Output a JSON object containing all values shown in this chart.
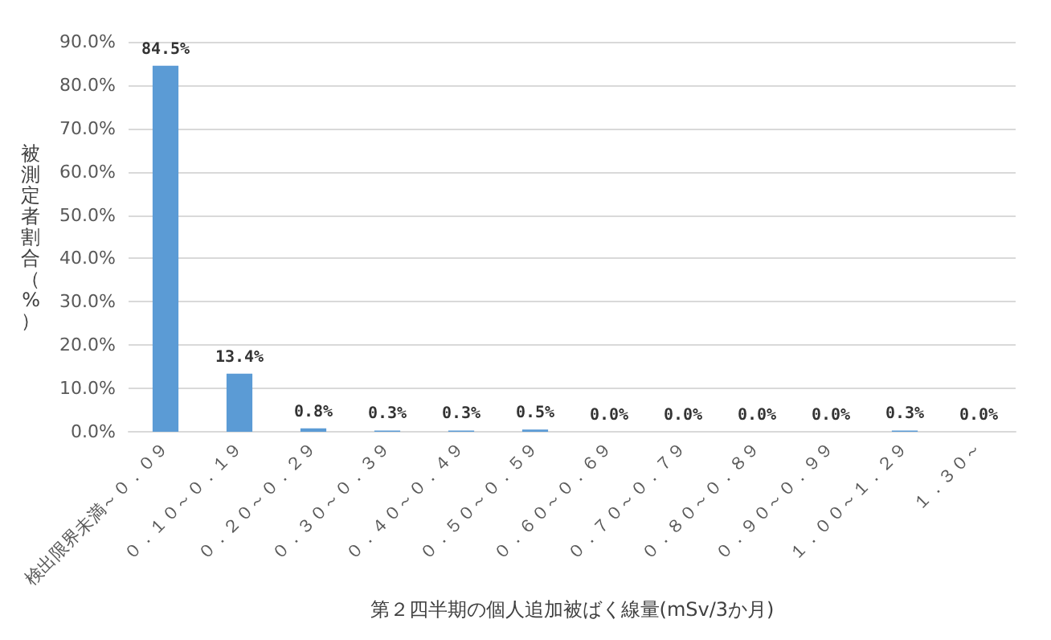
{
  "chart_data": {
    "type": "bar",
    "xlabel": "第２四半期の個人追加被ばく線量(mSv/3か月)",
    "ylabel": "被測定者割合（%）",
    "categories": [
      "検出限界未満～０．０９",
      "０．１０～０．１９",
      "０．２０～０．２９",
      "０．３０～０．３９",
      "０．４０～０．４９",
      "０．５０～０．５９",
      "０．６０～０．６９",
      "０．７０～０．７９",
      "０．８０～０．８９",
      "０．９０～０．９９",
      "１．００～１．２９",
      "１．３０～"
    ],
    "values": [
      84.5,
      13.4,
      0.8,
      0.3,
      0.3,
      0.5,
      0.0,
      0.0,
      0.0,
      0.0,
      0.3,
      0.0
    ],
    "value_labels": [
      "84.5%",
      "13.4%",
      "0.8%",
      "0.3%",
      "0.3%",
      "0.5%",
      "0.0%",
      "0.0%",
      "0.0%",
      "0.0%",
      "0.3%",
      "0.0%"
    ],
    "color": "#5b9bd5",
    "ylim": [
      0,
      90
    ],
    "yticks": [
      {
        "value": 0,
        "label": "0.0%"
      },
      {
        "value": 10,
        "label": "10.0%"
      },
      {
        "value": 20,
        "label": "20.0%"
      },
      {
        "value": 30,
        "label": "30.0%"
      },
      {
        "value": 40,
        "label": "40.0%"
      },
      {
        "value": 50,
        "label": "50.0%"
      },
      {
        "value": 60,
        "label": "60.0%"
      },
      {
        "value": 70,
        "label": "70.0%"
      },
      {
        "value": 80,
        "label": "80.0%"
      },
      {
        "value": 90,
        "label": "90.0%"
      }
    ],
    "grid": "y"
  }
}
